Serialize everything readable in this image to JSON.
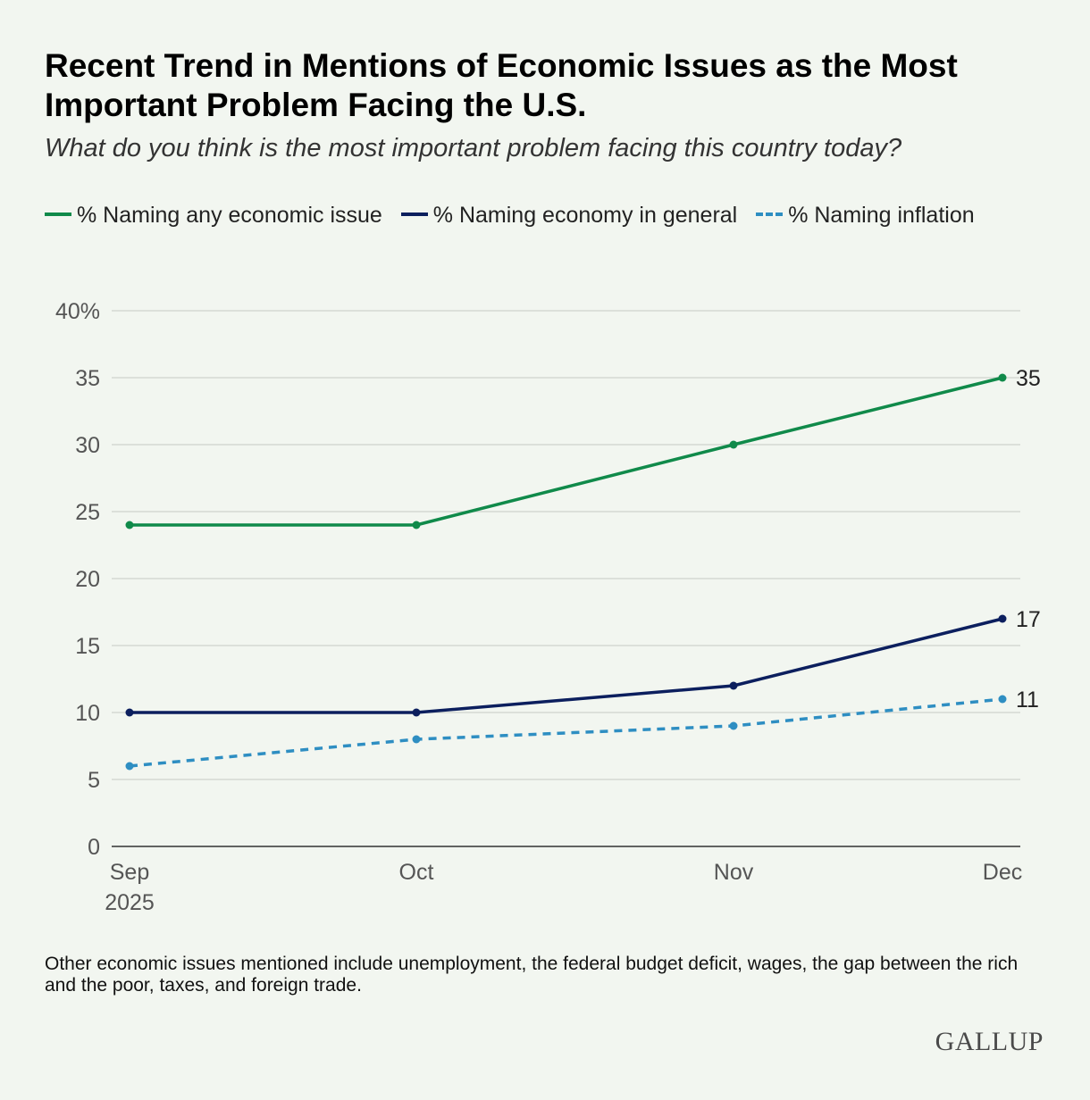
{
  "header": {
    "title": "Recent Trend in Mentions of Economic Issues as the Most Important Problem Facing the U.S.",
    "subtitle": "What do you think is the most important problem facing this country today?"
  },
  "chart_data": {
    "type": "line",
    "title": "Recent Trend in Mentions of Economic Issues as the Most Important Problem Facing the U.S.",
    "subtitle": "What do you think is the most important problem facing this country today?",
    "categories": [
      "Sep",
      "Oct",
      "Nov",
      "Dec"
    ],
    "category_sublabels": [
      "2025",
      "",
      "",
      ""
    ],
    "ylim": [
      0,
      40
    ],
    "yticks": [
      0,
      5,
      10,
      15,
      20,
      25,
      30,
      35,
      40
    ],
    "ytick_labels": [
      "0",
      "5",
      "10",
      "15",
      "20",
      "25",
      "30",
      "35",
      "40%"
    ],
    "grid": true,
    "legend_position": "top-left",
    "series": [
      {
        "name": "% Naming any economic issue",
        "values": [
          24,
          24,
          30,
          35
        ],
        "color": "#108a4a",
        "dashed": false,
        "end_label": "35"
      },
      {
        "name": "% Naming economy in general",
        "values": [
          10,
          10,
          12,
          17
        ],
        "color": "#0c1f5e",
        "dashed": false,
        "end_label": "17"
      },
      {
        "name": "% Naming inflation",
        "values": [
          6,
          8,
          9,
          11
        ],
        "color": "#2e8ec2",
        "dashed": true,
        "end_label": "11"
      }
    ]
  },
  "footnote": "Other economic issues mentioned include unemployment, the federal budget deficit, wages, the gap between the rich and the poor, taxes, and foreign trade.",
  "brand": "GALLUP",
  "colors": {
    "background": "#f2f6f0",
    "grid": "#d4d8d2",
    "axis_text": "#555555"
  }
}
